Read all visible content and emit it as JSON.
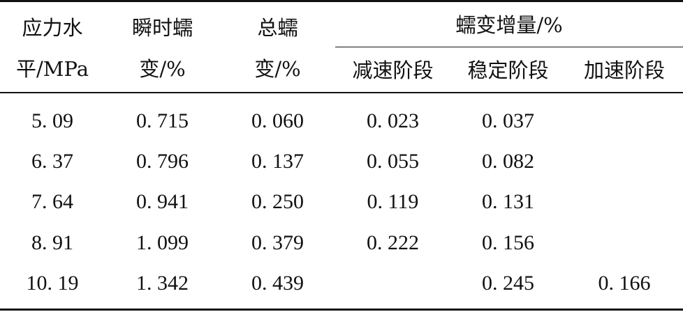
{
  "table": {
    "headers": {
      "stress": [
        "应力水",
        "平/MPa"
      ],
      "instant": [
        "瞬时蠕",
        "变/%"
      ],
      "total": [
        "总蠕",
        "变/%"
      ],
      "increment_group": "蠕变增量/%",
      "phases": [
        "减速阶段",
        "稳定阶段",
        "加速阶段"
      ]
    },
    "rows": [
      [
        "5. 09",
        "0. 715",
        "0. 060",
        "0. 023",
        "0. 037",
        ""
      ],
      [
        "6. 37",
        "0. 796",
        "0. 137",
        "0. 055",
        "0. 082",
        ""
      ],
      [
        "7. 64",
        "0. 941",
        "0. 250",
        "0. 119",
        "0. 131",
        ""
      ],
      [
        "8. 91",
        "1. 099",
        "0. 379",
        "0. 222",
        "0. 156",
        ""
      ],
      [
        "10. 19",
        "1. 342",
        "0. 439",
        "",
        "0. 245",
        "0. 166"
      ]
    ]
  }
}
